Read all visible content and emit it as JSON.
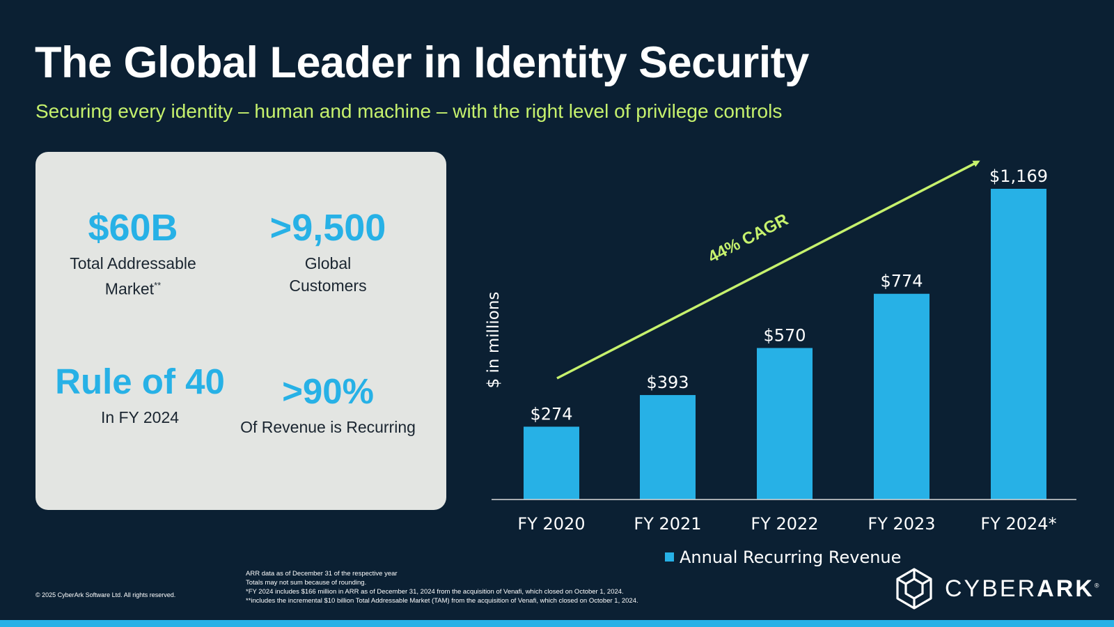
{
  "header": {
    "title": "The Global Leader in Identity Security",
    "subtitle": "Securing every identity – human and machine – with the right level of privilege controls"
  },
  "stats": [
    {
      "value": "$60B",
      "label_line1": "Total Addressable",
      "label_line2": "Market",
      "label_sup": "**"
    },
    {
      "value": ">9,500",
      "label_line1": "Global",
      "label_line2": "Customers"
    },
    {
      "value": "Rule of 40",
      "label_line1": "In FY 2024"
    },
    {
      "value": ">90%",
      "label_line1": "Of Revenue is Recurring"
    }
  ],
  "chart_data": {
    "type": "bar",
    "categories": [
      "FY 2020",
      "FY 2021",
      "FY 2022",
      "FY 2023",
      "FY 2024*"
    ],
    "series": [
      {
        "name": "Annual Recurring Revenue",
        "values": [
          274,
          393,
          570,
          774,
          1169
        ],
        "color": "#27b1e6"
      }
    ],
    "data_labels": [
      "$274",
      "$393",
      "$570",
      "$774",
      "$1,169"
    ],
    "ylabel": "$ in millions",
    "annotation": "44% CAGR",
    "annotation_color": "#c6f16d",
    "legend_position": "bottom-center",
    "grid": false,
    "ylim": [
      0,
      1169
    ]
  },
  "footer": {
    "copyright": "© 2025 CyberArk Software Ltd. All rights reserved.",
    "notes": [
      "ARR data as of December 31 of the respective year",
      "Totals may not sum because of rounding.",
      "*FY 2024 includes $166 million in ARR as of December 31, 2024 from the acquisition of Venafi, which closed on October 1, 2024.",
      "**includes the incremental $10 billion Total Addressable Market (TAM) from the acquisition of Venafi, which closed on October 1, 2024."
    ]
  },
  "logo": {
    "text_light": "CYBER",
    "text_bold": "ARK",
    "mark": "®",
    "icon": "cube-logo-icon"
  },
  "colors": {
    "background": "#0b2033",
    "accent_blue": "#27b1e6",
    "accent_green": "#c6f16d",
    "card": "#e3e5e2"
  }
}
